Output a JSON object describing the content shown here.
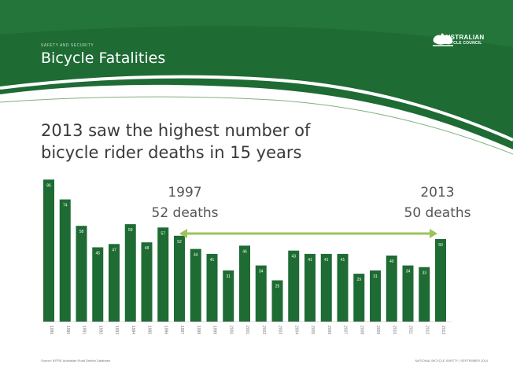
{
  "header": {
    "kicker": "SAFETY AND SECURITY",
    "title": "Bicycle Fatalities",
    "bg_color": "#1e6b34",
    "logo": {
      "icon": "australia-map-icon",
      "line1": "AUSTRALIAN",
      "line2": "BICYCLE COUNCIL"
    }
  },
  "headline": {
    "line1": "2013 saw the highest number of",
    "line2": "bicycle rider deaths in 15 years"
  },
  "annotations": {
    "left_year": "1997",
    "left_deaths": "52 deaths",
    "right_year": "2013",
    "right_deaths": "50 deaths",
    "arrow_color": "#9bc45a"
  },
  "footer": {
    "source": "Source: BITRE Australian Road Deaths Database",
    "right": "NATIONAL BICYCLE SAFETY | SEPTEMBER 2014"
  },
  "chart_data": {
    "type": "bar",
    "bar_color": "#1e6b34",
    "label_color": "#ffffff",
    "categories": [
      "1989",
      "1990",
      "1991",
      "1992",
      "1993",
      "1994",
      "1995",
      "1996",
      "1997",
      "1998",
      "1999",
      "2000",
      "2001",
      "2002",
      "2003",
      "2004",
      "2005",
      "2006",
      "2007",
      "2008",
      "2009",
      "2010",
      "2011",
      "2012",
      "2013"
    ],
    "values": [
      86,
      74,
      58,
      45,
      47,
      59,
      48,
      57,
      52,
      44,
      41,
      31,
      46,
      34,
      25,
      43,
      41,
      41,
      41,
      29,
      31,
      40,
      34,
      33,
      50
    ],
    "ylim": [
      0,
      90
    ],
    "grid": false
  }
}
